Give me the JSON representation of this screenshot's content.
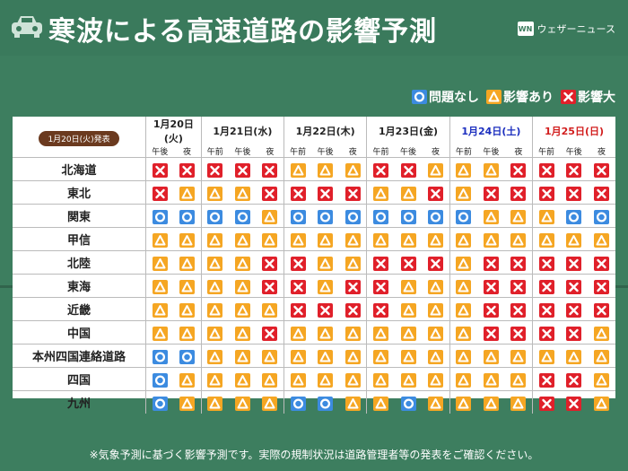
{
  "title": "寒波による高速道路の影響予測",
  "brand": {
    "logo_text": "WN",
    "name": "ウェザーニュース"
  },
  "legend": [
    {
      "symbol": "o",
      "label": "問題なし"
    },
    {
      "symbol": "t",
      "label": "影響あり"
    },
    {
      "symbol": "x",
      "label": "影響大"
    }
  ],
  "issued_label": "1月20日(火)発表",
  "days": [
    {
      "date": "1月20日(火)",
      "slots": [
        "午後",
        "夜"
      ],
      "style": "normal"
    },
    {
      "date": "1月21日(水)",
      "slots": [
        "午前",
        "午後",
        "夜"
      ],
      "style": "normal"
    },
    {
      "date": "1月22日(木)",
      "slots": [
        "午前",
        "午後",
        "夜"
      ],
      "style": "normal"
    },
    {
      "date": "1月23日(金)",
      "slots": [
        "午前",
        "午後",
        "夜"
      ],
      "style": "normal"
    },
    {
      "date": "1月24日(土)",
      "slots": [
        "午前",
        "午後",
        "夜"
      ],
      "style": "sat"
    },
    {
      "date": "1月25日(日)",
      "slots": [
        "午前",
        "午後",
        "夜"
      ],
      "style": "sun"
    }
  ],
  "rows": [
    {
      "region": "北海道",
      "values": [
        "x",
        "x",
        "x",
        "x",
        "x",
        "t",
        "t",
        "t",
        "x",
        "x",
        "t",
        "t",
        "t",
        "x",
        "x",
        "x",
        "x"
      ]
    },
    {
      "region": "東北",
      "values": [
        "x",
        "t",
        "t",
        "t",
        "x",
        "x",
        "x",
        "x",
        "t",
        "t",
        "x",
        "t",
        "x",
        "x",
        "x",
        "x",
        "x"
      ]
    },
    {
      "region": "関東",
      "values": [
        "o",
        "o",
        "o",
        "o",
        "t",
        "o",
        "o",
        "o",
        "o",
        "o",
        "o",
        "o",
        "t",
        "t",
        "t",
        "o",
        "o"
      ]
    },
    {
      "region": "甲信",
      "values": [
        "t",
        "t",
        "t",
        "t",
        "t",
        "t",
        "t",
        "t",
        "t",
        "t",
        "t",
        "t",
        "t",
        "t",
        "t",
        "t",
        "t"
      ]
    },
    {
      "region": "北陸",
      "values": [
        "t",
        "t",
        "t",
        "t",
        "x",
        "x",
        "t",
        "t",
        "x",
        "x",
        "x",
        "t",
        "x",
        "x",
        "x",
        "x",
        "x"
      ]
    },
    {
      "region": "東海",
      "values": [
        "t",
        "t",
        "t",
        "t",
        "x",
        "x",
        "t",
        "x",
        "x",
        "t",
        "t",
        "t",
        "x",
        "x",
        "x",
        "x",
        "x"
      ]
    },
    {
      "region": "近畿",
      "values": [
        "t",
        "t",
        "t",
        "t",
        "t",
        "x",
        "x",
        "x",
        "x",
        "t",
        "t",
        "t",
        "x",
        "x",
        "x",
        "x",
        "x"
      ]
    },
    {
      "region": "中国",
      "values": [
        "t",
        "t",
        "t",
        "t",
        "x",
        "t",
        "t",
        "t",
        "t",
        "t",
        "t",
        "t",
        "x",
        "x",
        "x",
        "x",
        "t"
      ]
    },
    {
      "region": "本州四国連絡道路",
      "values": [
        "o",
        "o",
        "t",
        "t",
        "t",
        "t",
        "t",
        "t",
        "t",
        "t",
        "t",
        "t",
        "t",
        "t",
        "t",
        "t",
        "t"
      ]
    },
    {
      "region": "四国",
      "values": [
        "o",
        "t",
        "t",
        "t",
        "t",
        "t",
        "t",
        "t",
        "t",
        "t",
        "t",
        "t",
        "t",
        "t",
        "x",
        "x",
        "t"
      ]
    },
    {
      "region": "九州",
      "values": [
        "o",
        "t",
        "t",
        "t",
        "t",
        "o",
        "o",
        "t",
        "t",
        "o",
        "t",
        "t",
        "t",
        "t",
        "x",
        "x",
        "t"
      ]
    }
  ],
  "footnote": "※気象予測に基づく影響予測です。実際の規制状況は道路管理者等の発表をご確認ください。",
  "colors": {
    "background": "#3d7e5f",
    "no_problem": "#3c8be0",
    "impact": "#f5a623",
    "major_impact": "#e0202a",
    "saturday": "#1c2fbf",
    "sunday": "#d21e1e"
  }
}
